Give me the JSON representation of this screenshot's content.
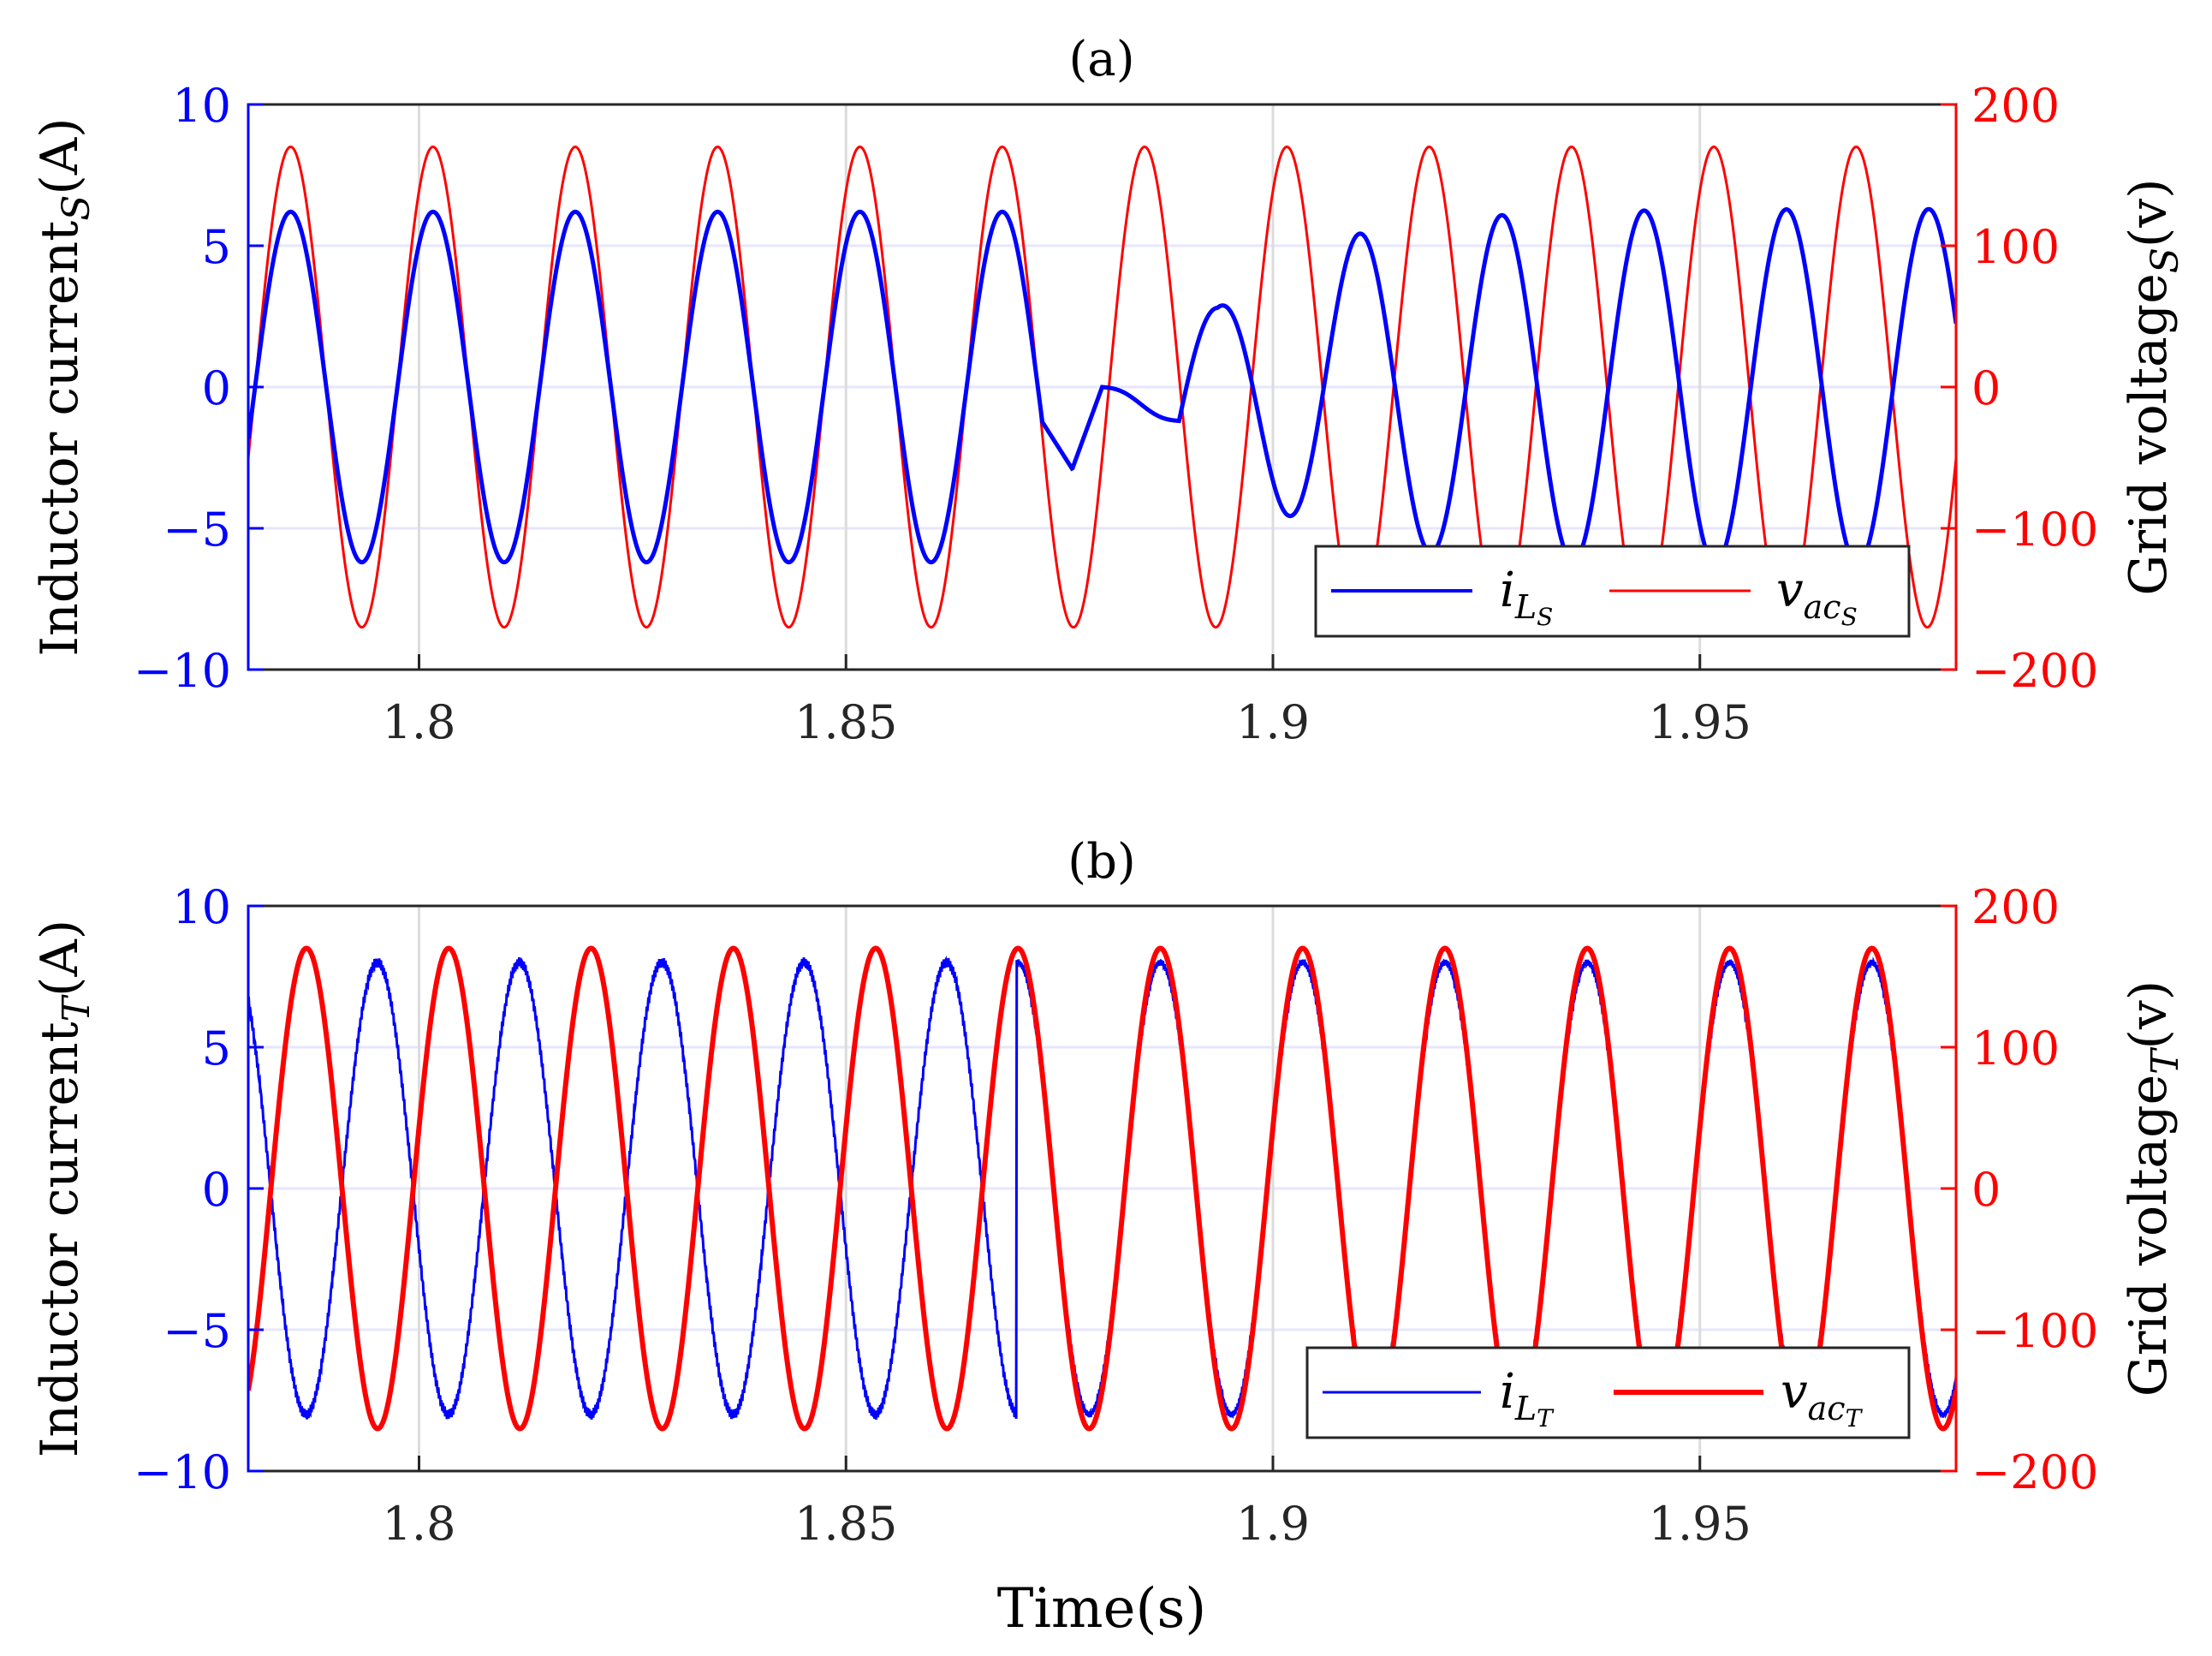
{
  "figure": {
    "xlabel": "Time(s)",
    "colors": {
      "current": "#0000ff",
      "voltage": "#ff0000",
      "grid": "#e6e6ff",
      "axis": "#262626"
    }
  },
  "chart_data": [
    {
      "type": "line",
      "title": "(a)",
      "xlabel": "Time(s)",
      "ylabel_left": "Inductor current_S(A)",
      "ylabel_right": "Grid voltage_S(v)",
      "xlim": [
        1.78,
        1.98
      ],
      "ylim_left": [
        -10,
        10
      ],
      "ylim_right": [
        -200,
        200
      ],
      "x_ticks": [
        1.8,
        1.85,
        1.9,
        1.95
      ],
      "x_tick_labels": [
        "1.8",
        "1.85",
        "1.9",
        "1.95"
      ],
      "y_left_ticks": [
        10,
        5,
        0,
        -5,
        -10
      ],
      "y_left_tick_labels": [
        "10",
        "5",
        "0",
        "−5",
        "−10"
      ],
      "y_right_ticks": [
        200,
        100,
        0,
        -100,
        -200
      ],
      "y_right_tick_labels": [
        "200",
        "100",
        "0",
        "−100",
        "−200"
      ],
      "grid": true,
      "legend_position": "bottom-right",
      "series": [
        {
          "name": "i_L_S",
          "label_main": "i",
          "label_sub": "L",
          "label_subsub": "S",
          "axis": "left",
          "color": "#0000ff",
          "description": "60 Hz sinusoid, amplitude ~6.2 A until ~1.873 s; disturbance with near-zero current ~1.876-1.89 s; phase-shifted ~180 deg after 1.893 s, amplitude recovering from ~2.8 A to ~6.3 A",
          "frequency_hz": 60,
          "amplitude_before": 6.2,
          "amplitude_after": 6.3,
          "disturbance_start": 1.873,
          "disturbance_end": 1.893
        },
        {
          "name": "v_ac_S",
          "label_main": "v",
          "label_sub": "ac",
          "label_subsub": "S",
          "axis": "right",
          "color": "#ff0000",
          "frequency_hz": 60,
          "amplitude": 170,
          "description": "60 Hz grid voltage, peak ~170 V"
        }
      ]
    },
    {
      "type": "line",
      "title": "(b)",
      "xlabel": "Time(s)",
      "ylabel_left": "Inductor current_T(A)",
      "ylabel_right": "Grid voltage_T(v)",
      "xlim": [
        1.78,
        1.98
      ],
      "ylim_left": [
        -10,
        10
      ],
      "ylim_right": [
        -200,
        200
      ],
      "x_ticks": [
        1.8,
        1.85,
        1.9,
        1.95
      ],
      "x_tick_labels": [
        "1.8",
        "1.85",
        "1.9",
        "1.95"
      ],
      "y_left_ticks": [
        10,
        5,
        0,
        -5,
        -10
      ],
      "y_left_tick_labels": [
        "10",
        "5",
        "0",
        "−5",
        "−10"
      ],
      "y_right_ticks": [
        200,
        100,
        0,
        -100,
        -200
      ],
      "y_right_tick_labels": [
        "200",
        "100",
        "0",
        "−100",
        "−200"
      ],
      "grid": true,
      "legend_position": "bottom-right",
      "series": [
        {
          "name": "i_L_T",
          "label_main": "i",
          "label_sub": "L",
          "label_subsub": "T",
          "axis": "left",
          "color": "#0000ff",
          "description": "60 Hz sinusoid, amplitude ~8.0 A with switching ripple; out of phase with voltage until step at ~1.870 s, then in phase with voltage",
          "frequency_hz": 60,
          "amplitude": 8.0,
          "phase_step_time": 1.87
        },
        {
          "name": "v_ac_T",
          "label_main": "v",
          "label_sub": "ac",
          "label_subsub": "T",
          "axis": "right",
          "color": "#ff0000",
          "frequency_hz": 60,
          "amplitude": 170,
          "description": "60 Hz grid voltage, peak ~170 V"
        }
      ]
    }
  ]
}
